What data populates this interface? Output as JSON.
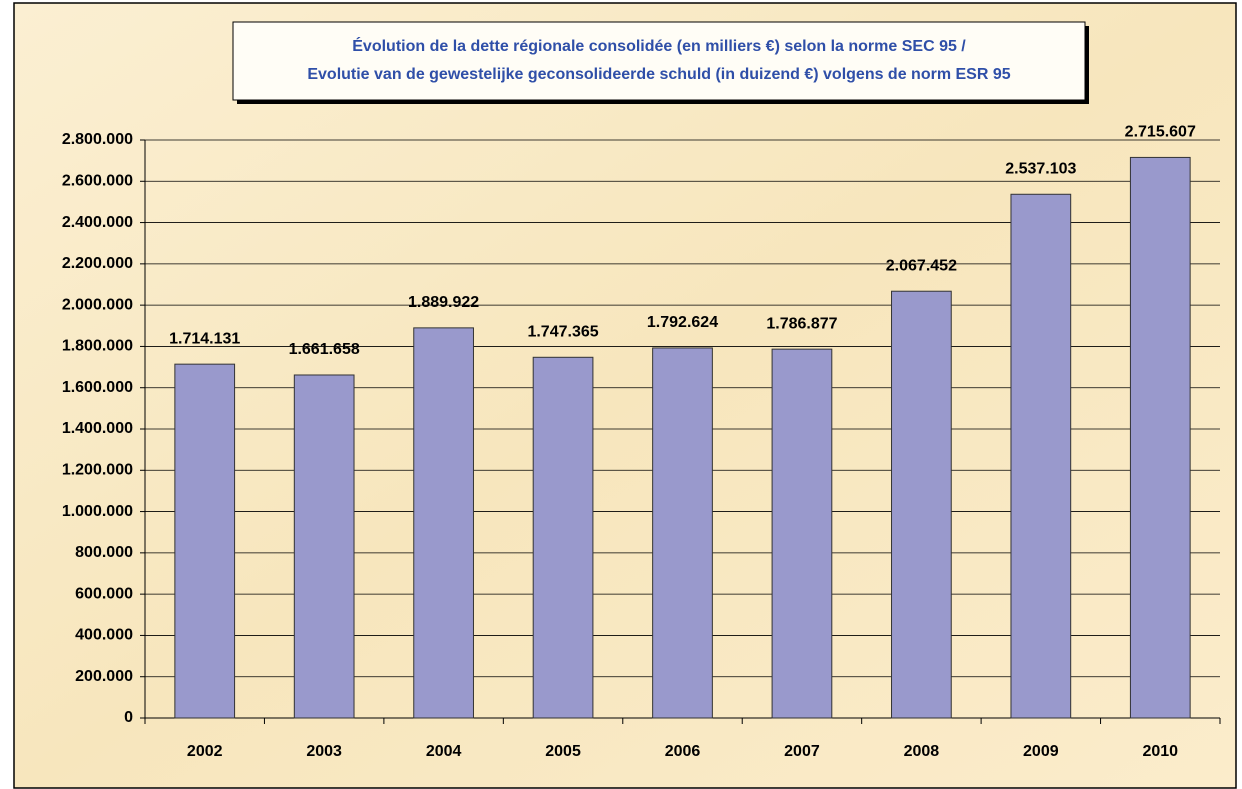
{
  "chart_data": {
    "type": "bar",
    "title": [
      "Évolution de la dette régionale consolidée (en milliers €) selon la norme SEC 95 /",
      "Evolutie van de gewestelijke geconsolideerde schuld (in duizend €) volgens de norm ESR 95"
    ],
    "categories": [
      "2002",
      "2003",
      "2004",
      "2005",
      "2006",
      "2007",
      "2008",
      "2009",
      "2010"
    ],
    "values": [
      1714131,
      1661658,
      1889922,
      1747365,
      1792624,
      1786877,
      2067452,
      2537103,
      2715607
    ],
    "value_labels": [
      "1.714.131",
      "1.661.658",
      "1.889.922",
      "1.747.365",
      "1.792.624",
      "1.786.877",
      "2.067.452",
      "2.537.103",
      "2.715.607"
    ],
    "color": "#9999cc",
    "ylim": [
      0,
      2800000
    ],
    "yticks": [
      0,
      {
        "value": 200000,
        "label": "200.000"
      },
      {
        "value": 400000,
        "label": "400.000"
      },
      {
        "value": 600000,
        "label": "600.000"
      },
      {
        "value": 800000,
        "label": "800.000"
      },
      {
        "value": 1000000,
        "label": "1.000.000"
      },
      {
        "value": 1200000,
        "label": "1.200.000"
      },
      {
        "value": 1400000,
        "label": "1.400.000"
      },
      {
        "value": 1600000,
        "label": "1.600.000"
      },
      {
        "value": 1800000,
        "label": "1.800.000"
      },
      {
        "value": 2000000,
        "label": "2.000.000"
      },
      {
        "value": 2200000,
        "label": "2.200.000"
      },
      {
        "value": 2400000,
        "label": "2.400.000"
      },
      {
        "value": 2600000,
        "label": "2.600.000"
      },
      {
        "value": 2800000,
        "label": "2.800.000"
      }
    ],
    "grid": true
  }
}
